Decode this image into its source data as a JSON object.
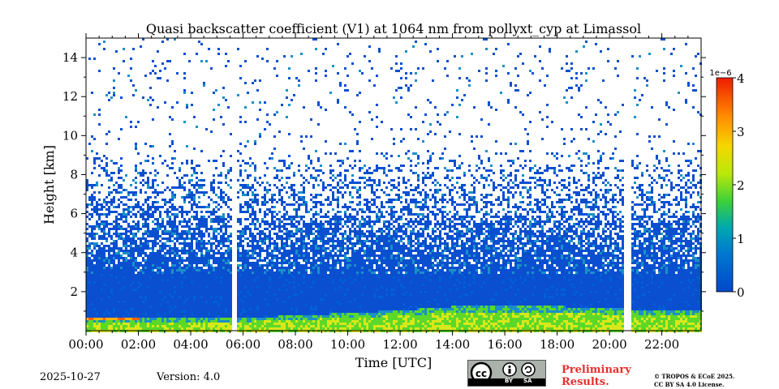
{
  "chart_data": {
    "type": "heatmap",
    "title": "Quasi backscatter coefficient (V1) at 1064 nm from pollyxt_cyp at Limassol",
    "xlabel": "Time [UTC]",
    "ylabel": "Height [km]",
    "x_range_hours": [
      0,
      23.5
    ],
    "y_range_km": [
      0,
      15
    ],
    "x_ticks": [
      "00:00",
      "02:00",
      "04:00",
      "06:00",
      "08:00",
      "10:00",
      "12:00",
      "14:00",
      "16:00",
      "18:00",
      "20:00",
      "22:00"
    ],
    "y_ticks": [
      2,
      4,
      6,
      8,
      10,
      12,
      14
    ],
    "data_gaps_utc": [
      [
        "05:32",
        "05:45"
      ],
      [
        "20:32",
        "20:45"
      ]
    ],
    "colorbar": {
      "min": 0,
      "max": 4,
      "exponent_label": "1e−6",
      "ticks": [
        0,
        1,
        2,
        3,
        4
      ],
      "colormap": "jet-like"
    },
    "features": {
      "boundary_layer_top_km": [
        {
          "time_h": 0,
          "height_km": 0.7
        },
        {
          "time_h": 5.5,
          "height_km": 0.7
        },
        {
          "time_h": 6,
          "height_km": 0.7
        },
        {
          "time_h": 9,
          "height_km": 0.9
        },
        {
          "time_h": 12,
          "height_km": 1.1
        },
        {
          "time_h": 14,
          "height_km": 1.3
        },
        {
          "time_h": 18,
          "height_km": 1.3
        },
        {
          "time_h": 21,
          "height_km": 1.15
        },
        {
          "time_h": 23.5,
          "height_km": 1.1
        }
      ],
      "early_layer": {
        "time_start": "00:00",
        "time_end": "02:00",
        "height_km": 0.75
      }
    }
  },
  "footer": {
    "date": "2025-10-27",
    "version": "Version: 4.0",
    "cc_labels": [
      "BY",
      "SA"
    ],
    "preliminary": [
      "Preliminary",
      "Results."
    ],
    "license": [
      "© TROPOS & ECoE 2025.",
      "CC BY SA 4.0 License."
    ]
  }
}
